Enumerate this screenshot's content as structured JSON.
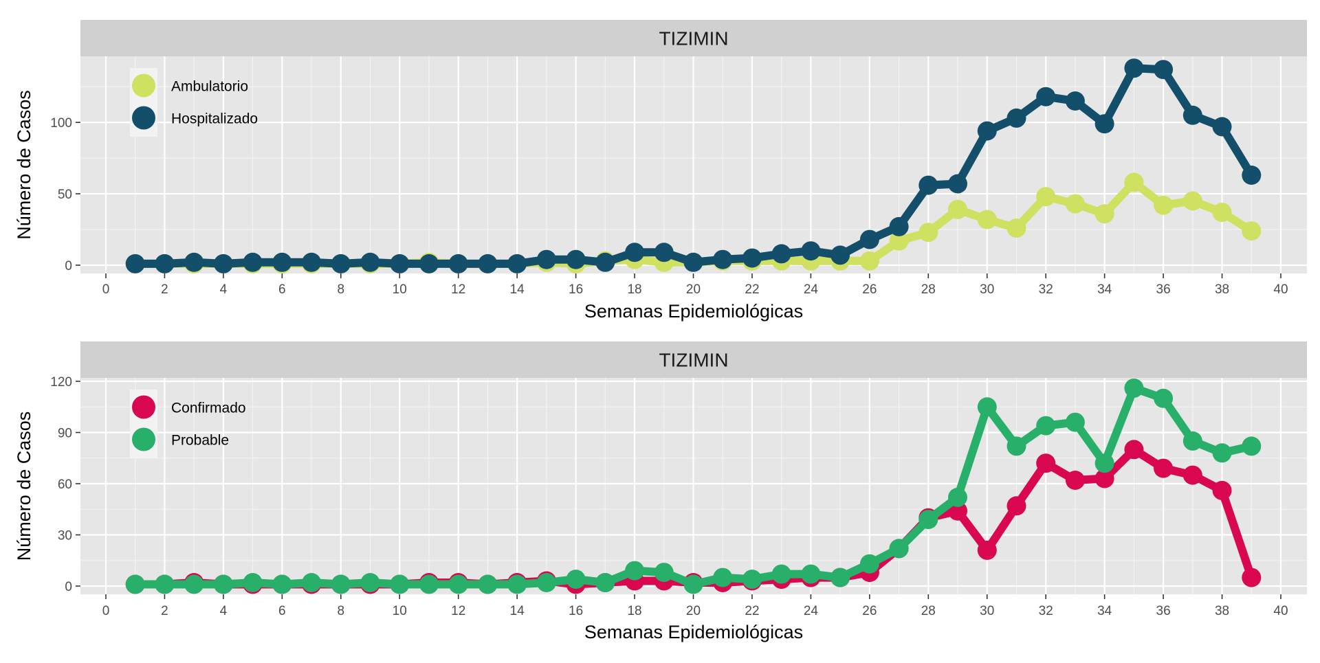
{
  "chart_data": [
    {
      "type": "line",
      "title": "TIZIMIN",
      "xlabel": "Semanas Epidemiológicas",
      "ylabel": "Número de Casos",
      "xlim": [
        0,
        40
      ],
      "ylim": [
        0,
        140
      ],
      "x_ticks": [
        0,
        2,
        4,
        6,
        8,
        10,
        12,
        14,
        16,
        18,
        20,
        22,
        24,
        26,
        28,
        30,
        32,
        34,
        36,
        38,
        40
      ],
      "y_ticks": [
        0,
        50,
        100
      ],
      "grid": true,
      "legend_position": "top-left",
      "series": [
        {
          "name": "Ambulatorio",
          "color": "#d0e060",
          "x": [
            1,
            2,
            3,
            4,
            5,
            6,
            7,
            8,
            9,
            10,
            11,
            12,
            13,
            14,
            15,
            16,
            17,
            18,
            19,
            20,
            21,
            22,
            23,
            24,
            25,
            26,
            27,
            28,
            29,
            30,
            31,
            32,
            33,
            34,
            35,
            36,
            37,
            38,
            39
          ],
          "values": [
            1,
            1,
            1,
            1,
            1,
            1,
            1,
            1,
            1,
            1,
            2,
            1,
            1,
            1,
            2,
            1,
            3,
            4,
            2,
            2,
            3,
            3,
            3,
            3,
            3,
            3,
            17,
            23,
            39,
            32,
            26,
            48,
            43,
            36,
            58,
            42,
            45,
            37,
            24
          ]
        },
        {
          "name": "Hospitalizado",
          "color": "#134f6b",
          "x": [
            1,
            2,
            3,
            4,
            5,
            6,
            7,
            8,
            9,
            10,
            11,
            12,
            13,
            14,
            15,
            16,
            17,
            18,
            19,
            20,
            21,
            22,
            23,
            24,
            25,
            26,
            27,
            28,
            29,
            30,
            31,
            32,
            33,
            34,
            35,
            36,
            37,
            38,
            39
          ],
          "values": [
            1,
            1,
            2,
            1,
            2,
            2,
            2,
            1,
            2,
            1,
            1,
            1,
            1,
            1,
            4,
            4,
            2,
            9,
            9,
            2,
            4,
            5,
            8,
            10,
            7,
            18,
            27,
            56,
            57,
            94,
            103,
            118,
            115,
            99,
            138,
            137,
            105,
            97,
            63
          ]
        }
      ]
    },
    {
      "type": "line",
      "title": "TIZIMIN",
      "xlabel": "Semanas Epidemiológicas",
      "ylabel": "Número de Casos",
      "xlim": [
        0,
        40
      ],
      "ylim": [
        0,
        120
      ],
      "x_ticks": [
        0,
        2,
        4,
        6,
        8,
        10,
        12,
        14,
        16,
        18,
        20,
        22,
        24,
        26,
        28,
        30,
        32,
        34,
        36,
        38,
        40
      ],
      "y_ticks": [
        0,
        30,
        60,
        90,
        120
      ],
      "grid": true,
      "legend_position": "top-left",
      "series": [
        {
          "name": "Confirmado",
          "color": "#d8074f",
          "x": [
            1,
            2,
            3,
            4,
            5,
            6,
            7,
            8,
            9,
            10,
            11,
            12,
            13,
            14,
            15,
            16,
            17,
            18,
            19,
            20,
            21,
            22,
            23,
            24,
            25,
            26,
            27,
            28,
            29,
            30,
            31,
            32,
            33,
            34,
            35,
            36,
            37,
            38,
            39
          ],
          "values": [
            1,
            1,
            2,
            1,
            1,
            1,
            1,
            1,
            1,
            1,
            2,
            2,
            1,
            2,
            3,
            1,
            2,
            3,
            3,
            2,
            2,
            3,
            4,
            5,
            5,
            8,
            22,
            40,
            44,
            21,
            47,
            72,
            62,
            63,
            80,
            69,
            65,
            56,
            5
          ]
        },
        {
          "name": "Probable",
          "color": "#28b06a",
          "x": [
            1,
            2,
            3,
            4,
            5,
            6,
            7,
            8,
            9,
            10,
            11,
            12,
            13,
            14,
            15,
            16,
            17,
            18,
            19,
            20,
            21,
            22,
            23,
            24,
            25,
            26,
            27,
            28,
            29,
            30,
            31,
            32,
            33,
            34,
            35,
            36,
            37,
            38,
            39
          ],
          "values": [
            1,
            1,
            1,
            1,
            2,
            1,
            2,
            1,
            2,
            1,
            1,
            1,
            1,
            1,
            2,
            4,
            2,
            9,
            8,
            1,
            5,
            4,
            7,
            7,
            5,
            13,
            22,
            39,
            52,
            105,
            82,
            94,
            96,
            72,
            116,
            110,
            85,
            78,
            82
          ]
        }
      ]
    }
  ]
}
